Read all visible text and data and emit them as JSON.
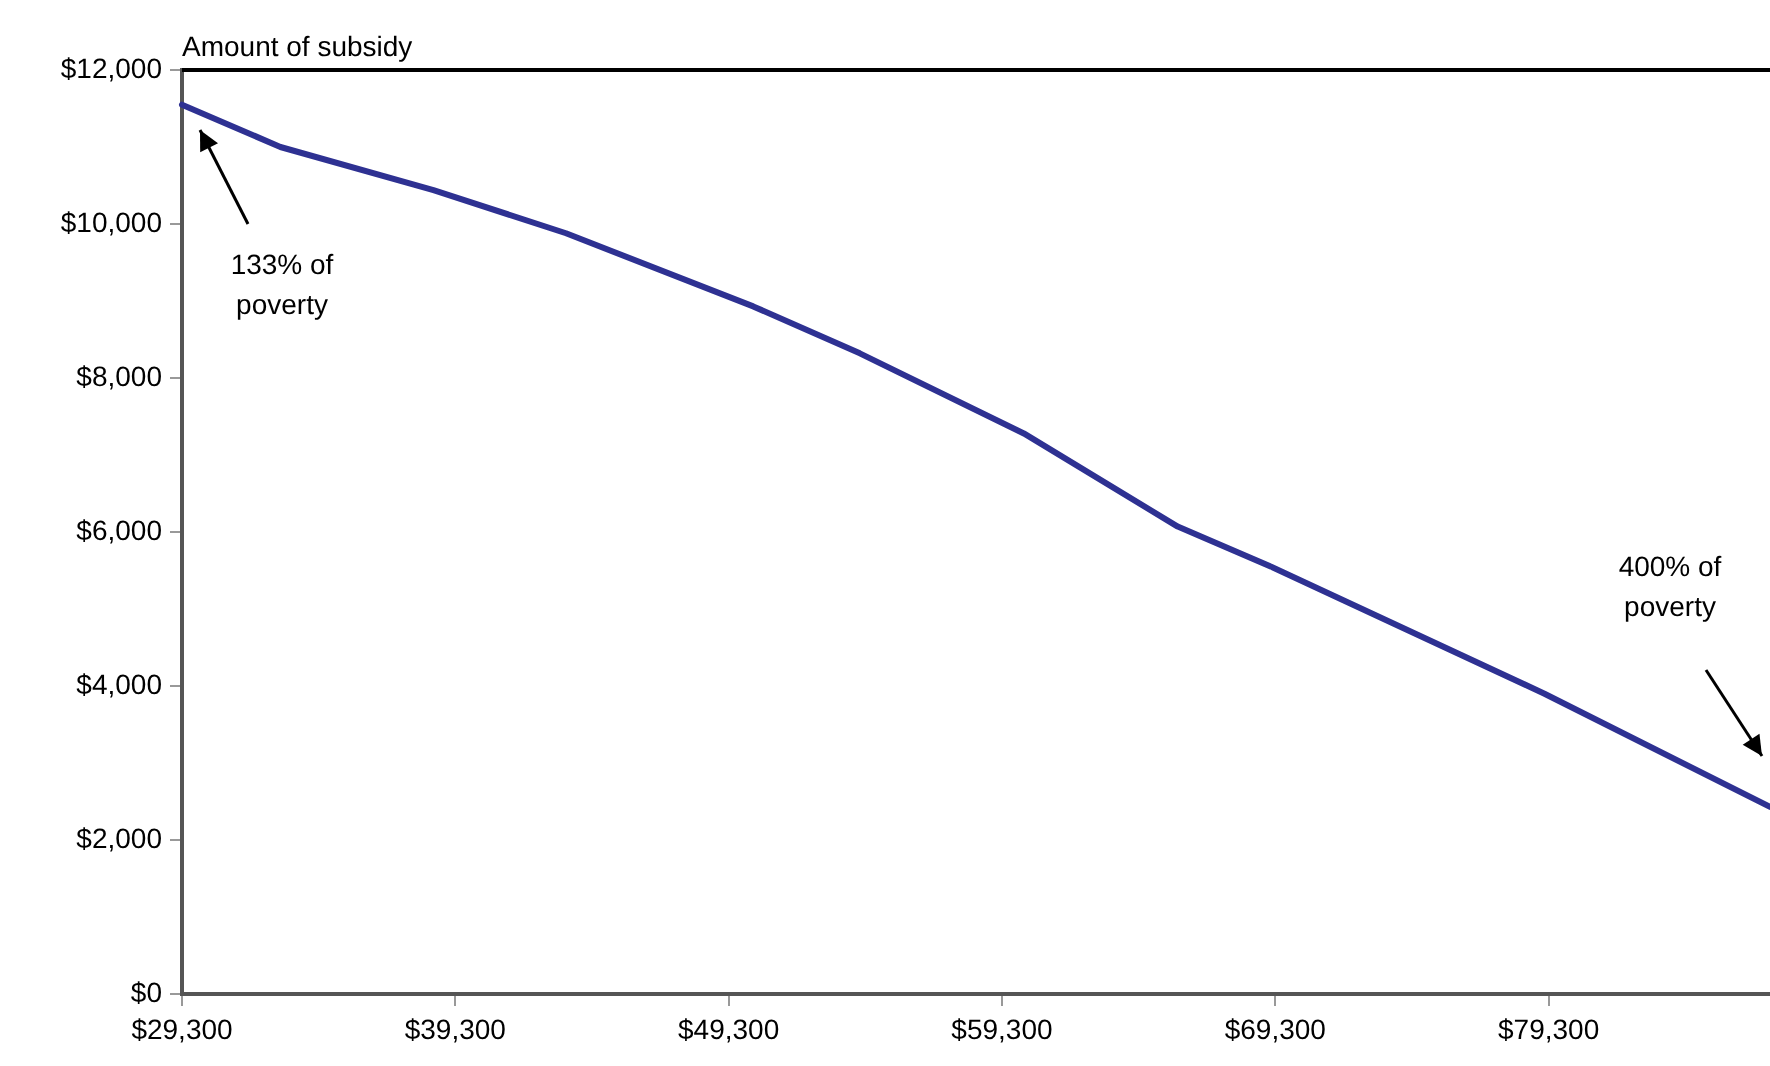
{
  "chart_data": {
    "type": "line",
    "ylabel": "Amount of subsidy",
    "x": [
      29300,
      32900,
      38500,
      43350,
      50200,
      54100,
      60100,
      65730,
      69150,
      79150,
      87400
    ],
    "series": [
      {
        "color": "#2e3192",
        "values": [
          11550,
          11000,
          10440,
          9880,
          8930,
          8320,
          7280,
          6070,
          5550,
          3900,
          2430
        ]
      }
    ],
    "xlim": [
      29300,
      87400
    ],
    "xticks": [
      {
        "value": 29300,
        "label": "$29,300"
      },
      {
        "value": 39300,
        "label": "$39,300"
      },
      {
        "value": 49300,
        "label": "$49,300"
      },
      {
        "value": 59300,
        "label": "$59,300"
      },
      {
        "value": 69300,
        "label": "$69,300"
      },
      {
        "value": 79300,
        "label": "$79,300"
      }
    ],
    "ylim": [
      0,
      12000
    ],
    "yticks": [
      {
        "value": 0,
        "label": "$0"
      },
      {
        "value": 2000,
        "label": "$2,000"
      },
      {
        "value": 4000,
        "label": "$4,000"
      },
      {
        "value": 6000,
        "label": "$6,000"
      },
      {
        "value": 8000,
        "label": "$8,000"
      },
      {
        "value": 10000,
        "label": "$10,000"
      },
      {
        "value": 12000,
        "label": "$12,000"
      }
    ],
    "annotations": [
      "133% of\npoverty",
      "400% of\npoverty"
    ],
    "grid": false,
    "legend": false,
    "marker": "none",
    "line_style": "solid"
  }
}
